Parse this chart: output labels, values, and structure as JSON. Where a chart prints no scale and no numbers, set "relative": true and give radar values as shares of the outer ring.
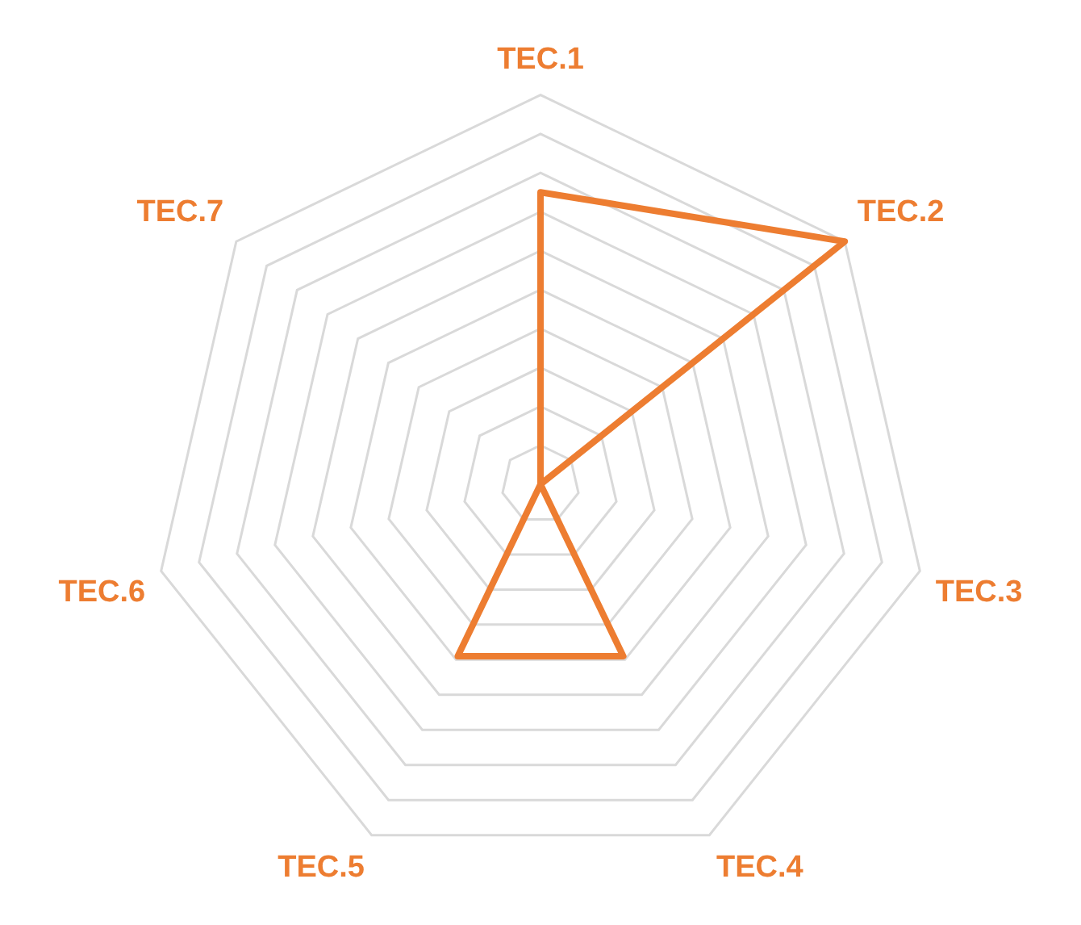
{
  "chart_data": {
    "type": "radar",
    "relative": true,
    "categories": [
      "TEC.1",
      "TEC.2",
      "TEC.3",
      "TEC.4",
      "TEC.5",
      "TEC.6",
      "TEC.7"
    ],
    "series": [
      {
        "color": "#ed7d31",
        "values": [
          0.75,
          1,
          0,
          0.49,
          0.49,
          0,
          0
        ]
      }
    ],
    "grid": true,
    "legend": false,
    "marker": "none",
    "line_style": "solid"
  }
}
